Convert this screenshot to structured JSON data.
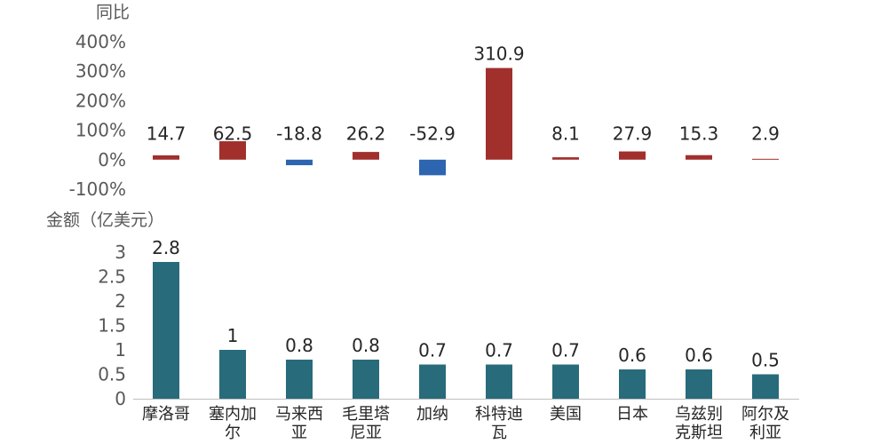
{
  "chart_data": [
    {
      "type": "bar",
      "ylabel": "同比",
      "categories": [
        "摩洛哥",
        "塞内加尔",
        "马来西亚",
        "毛里塔尼亚",
        "加纳",
        "科特迪瓦",
        "美国",
        "日本",
        "乌兹别克斯坦",
        "阿尔及利亚"
      ],
      "values": [
        14.7,
        62.5,
        -18.8,
        26.2,
        -52.9,
        310.9,
        8.1,
        27.9,
        15.3,
        2.9
      ],
      "value_labels": [
        "14.7",
        "62.5",
        "-18.8",
        "26.2",
        "-52.9",
        "310.9",
        "8.1",
        "27.9",
        "15.3",
        "2.9"
      ],
      "ylim": [
        -100,
        400
      ],
      "yticks": [
        -100,
        0,
        100,
        200,
        300,
        400
      ],
      "ytick_labels": [
        "-100%",
        "0%",
        "100%",
        "200%",
        "300%",
        "400%"
      ],
      "positive_color": "#A12F2C",
      "negative_color": "#2E65B0",
      "grid": false
    },
    {
      "type": "bar",
      "ylabel": "金额（亿美元）",
      "categories": [
        "摩洛哥",
        "塞内加尔",
        "马来西亚",
        "毛里塔尼亚",
        "加纳",
        "科特迪瓦",
        "美国",
        "日本",
        "乌兹别克斯坦",
        "阿尔及利亚"
      ],
      "category_lines": [
        [
          "摩洛哥"
        ],
        [
          "塞内加",
          "尔"
        ],
        [
          "马来西",
          "亚"
        ],
        [
          "毛里塔",
          "尼亚"
        ],
        [
          "加纳"
        ],
        [
          "科特迪",
          "瓦"
        ],
        [
          "美国"
        ],
        [
          "日本"
        ],
        [
          "乌兹别",
          "克斯坦"
        ],
        [
          "阿尔及",
          "利亚"
        ]
      ],
      "values": [
        2.8,
        1,
        0.8,
        0.8,
        0.7,
        0.7,
        0.7,
        0.6,
        0.6,
        0.5
      ],
      "value_labels": [
        "2.8",
        "1",
        "0.8",
        "0.8",
        "0.7",
        "0.7",
        "0.7",
        "0.6",
        "0.6",
        "0.5"
      ],
      "ylim": [
        0,
        3
      ],
      "yticks": [
        0,
        0.5,
        1,
        1.5,
        2,
        2.5,
        3
      ],
      "ytick_labels": [
        "0",
        "0.5",
        "1",
        "1.5",
        "2",
        "2.5",
        "3"
      ],
      "bar_color": "#286B7A",
      "axis_color": "#BFBFBF",
      "grid": false
    }
  ]
}
